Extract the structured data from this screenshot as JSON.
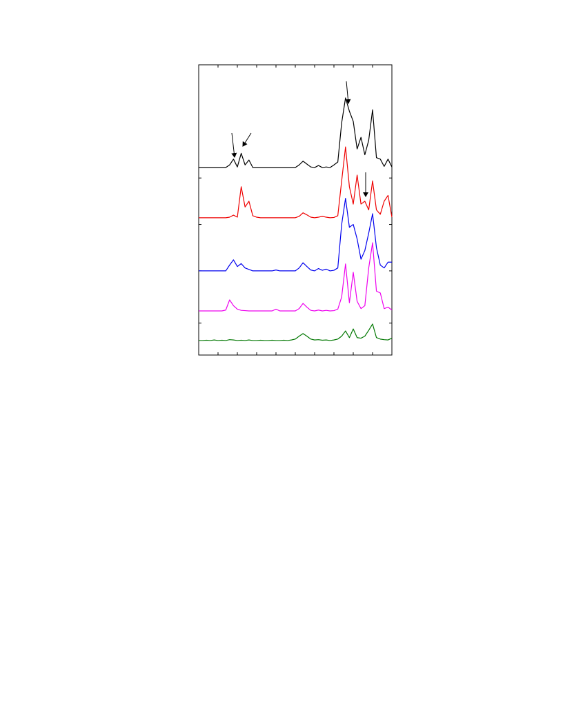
{
  "chart_data": {
    "type": "line",
    "x": [
      0,
      0.2,
      0.4,
      0.6,
      0.8,
      1,
      1.2,
      1.4,
      1.6,
      1.8,
      2,
      2.2,
      2.4,
      2.6,
      2.8,
      3,
      3.2,
      3.4,
      3.6,
      3.8,
      4,
      4.2,
      4.4,
      4.6,
      4.8,
      5,
      5.2,
      5.4,
      5.6,
      5.8,
      6,
      6.2,
      6.4,
      6.6,
      6.8,
      7,
      7.2,
      7.4,
      7.6,
      7.8,
      8,
      8.2,
      8.4,
      8.6,
      8.8,
      9,
      9.2,
      9.4,
      9.6,
      9.8,
      10
    ],
    "series": [
      {
        "color": "#000000",
        "values": [
          64.6,
          64.6,
          64.6,
          64.6,
          64.6,
          64.6,
          64.6,
          64.6,
          65.5,
          67.5,
          64.8,
          69.5,
          65.5,
          67.2,
          64.6,
          64.6,
          64.6,
          64.6,
          64.6,
          64.6,
          64.6,
          64.6,
          64.6,
          64.6,
          64.6,
          64.6,
          65.5,
          66.8,
          65.8,
          64.8,
          64.6,
          65.3,
          64.6,
          64.8,
          64.6,
          65.5,
          66.5,
          80,
          88.6,
          84,
          80.5,
          71,
          75,
          69,
          74,
          84.5,
          68,
          67.5,
          65,
          67.5,
          64.8
        ]
      },
      {
        "color": "#ee0000",
        "values": [
          47.3,
          47.3,
          47.3,
          47.3,
          47.3,
          47.3,
          47.3,
          47.3,
          47.5,
          48.2,
          47.5,
          58,
          51,
          53,
          48,
          47.5,
          47.3,
          47.3,
          47.3,
          47.3,
          47.3,
          47.3,
          47.3,
          47.3,
          47.3,
          47.3,
          47.8,
          49,
          48.3,
          47.5,
          47.3,
          47.5,
          47.8,
          47.5,
          47.3,
          47.4,
          48,
          60,
          71.7,
          58,
          52,
          62,
          52,
          53,
          50,
          60,
          50,
          48.5,
          53,
          55,
          47.5
        ]
      },
      {
        "color": "#0000ee",
        "values": [
          29,
          29,
          29,
          29,
          29,
          29,
          29,
          29,
          31,
          32.8,
          30.5,
          31.5,
          30,
          29.5,
          29,
          29,
          29,
          29,
          29,
          29,
          29.3,
          29,
          29,
          29,
          29,
          29,
          30,
          31.8,
          30.5,
          29.3,
          29,
          29.8,
          29.2,
          29.6,
          29,
          29.2,
          30,
          45,
          54,
          44,
          45,
          40,
          33,
          36,
          42,
          48.7,
          37,
          31,
          30,
          32,
          32
        ]
      },
      {
        "color": "#ee00ee",
        "values": [
          15.2,
          15.2,
          15.2,
          15.2,
          15.2,
          15.2,
          15.2,
          15.5,
          19,
          17,
          15.8,
          15.4,
          15.3,
          15.2,
          15.2,
          15.2,
          15.2,
          15.2,
          15.2,
          15.2,
          15.8,
          15.2,
          15.2,
          15.2,
          15.2,
          15.2,
          16,
          17.8,
          16.5,
          15.4,
          15.2,
          15.5,
          15.2,
          15.4,
          15.2,
          15.3,
          15.8,
          20,
          31.4,
          18,
          28.5,
          18.5,
          16,
          17,
          30,
          38.7,
          22,
          21.4,
          16,
          16.5,
          15.5
        ]
      },
      {
        "color": "#007700",
        "values": [
          5,
          5,
          5.1,
          5,
          5.2,
          5,
          5.1,
          5,
          5.3,
          5.2,
          5,
          5.1,
          5,
          5.2,
          5,
          5,
          5.1,
          5,
          5,
          5.1,
          5,
          5,
          5.1,
          5,
          5.2,
          5.5,
          6.5,
          7.4,
          6.5,
          5.5,
          5.2,
          5.3,
          5.1,
          5.2,
          5,
          5.2,
          5.5,
          6.5,
          8.3,
          6,
          9,
          6,
          5.8,
          6.5,
          8.5,
          10.7,
          6,
          5.5,
          5.3,
          5.2,
          5.8
        ]
      }
    ],
    "xlim": [
      0,
      10
    ],
    "xticks": [
      0,
      1,
      2,
      3,
      4,
      5,
      6,
      7,
      8,
      9,
      10
    ],
    "ylim": [
      0,
      100
    ],
    "yticks": [
      11,
      29,
      45,
      61
    ]
  }
}
